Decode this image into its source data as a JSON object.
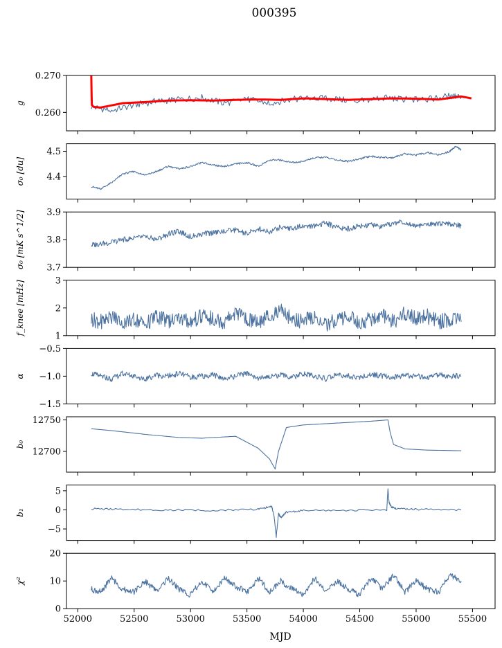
{
  "figure_title": "000395",
  "xlabel": "MJD",
  "colors": {
    "series": "#4c72a0",
    "fit": "#ff0000",
    "axes": "#000000"
  },
  "chart_data": [
    {
      "type": "line",
      "ylabel": "g",
      "ylim": [
        0.255,
        0.27
      ],
      "yticks": [
        "0.260",
        "0.270"
      ],
      "ytick_values": [
        0.26,
        0.27
      ],
      "series": [
        {
          "color": "#4c72a0",
          "x": [
            52120,
            52300,
            52500,
            52700,
            52900,
            53100,
            53300,
            53500,
            53700,
            53900,
            54100,
            54300,
            54500,
            54700,
            54900,
            55100,
            55300,
            55400
          ],
          "y": [
            0.2615,
            0.2605,
            0.262,
            0.263,
            0.2635,
            0.264,
            0.2625,
            0.2635,
            0.2625,
            0.2635,
            0.264,
            0.2635,
            0.263,
            0.264,
            0.2635,
            0.2635,
            0.2645,
            0.264
          ]
        },
        {
          "color": "#ff0000",
          "x": [
            52120,
            52125,
            52140,
            52200,
            52400,
            52600,
            52800,
            53000,
            53200,
            53400,
            53600,
            53800,
            54000,
            54200,
            54400,
            54600,
            54800,
            55000,
            55200,
            55400,
            55490
          ],
          "y": [
            0.27,
            0.262,
            0.2615,
            0.2613,
            0.2625,
            0.2628,
            0.2632,
            0.2633,
            0.2632,
            0.2634,
            0.2635,
            0.2634,
            0.2638,
            0.2636,
            0.2634,
            0.2636,
            0.2638,
            0.2637,
            0.2635,
            0.2643,
            0.2638
          ]
        }
      ]
    },
    {
      "type": "line",
      "ylabel": "σ₀ [du]",
      "ylim": [
        4.31,
        4.53
      ],
      "yticks": [
        "4.4",
        "4.5"
      ],
      "ytick_values": [
        4.4,
        4.5
      ],
      "series": [
        {
          "color": "#4c72a0",
          "x": [
            52120,
            52200,
            52300,
            52400,
            52500,
            52600,
            52700,
            52800,
            52900,
            53000,
            53100,
            53200,
            53300,
            53400,
            53500,
            53600,
            53700,
            53800,
            53900,
            54000,
            54100,
            54200,
            54300,
            54400,
            54500,
            54600,
            54700,
            54800,
            54900,
            55000,
            55100,
            55200,
            55300,
            55350,
            55400
          ],
          "y": [
            4.36,
            4.35,
            4.375,
            4.41,
            4.42,
            4.405,
            4.42,
            4.44,
            4.43,
            4.44,
            4.455,
            4.445,
            4.44,
            4.45,
            4.455,
            4.44,
            4.465,
            4.465,
            4.455,
            4.46,
            4.475,
            4.475,
            4.465,
            4.46,
            4.47,
            4.48,
            4.475,
            4.475,
            4.49,
            4.485,
            4.495,
            4.485,
            4.5,
            4.52,
            4.505
          ]
        }
      ]
    },
    {
      "type": "line",
      "ylabel": "σ₀ [mK s^1/2]",
      "ylim": [
        3.7,
        3.9
      ],
      "yticks": [
        "3.7",
        "3.8",
        "3.9"
      ],
      "ytick_values": [
        3.7,
        3.8,
        3.9
      ],
      "series": [
        {
          "color": "#4c72a0",
          "x": [
            52120,
            52200,
            52300,
            52400,
            52500,
            52600,
            52700,
            52800,
            52900,
            53000,
            53100,
            53200,
            53300,
            53400,
            53500,
            53600,
            53700,
            53800,
            53900,
            54000,
            54100,
            54200,
            54300,
            54400,
            54500,
            54600,
            54700,
            54800,
            54900,
            55000,
            55100,
            55200,
            55300,
            55400
          ],
          "y": [
            3.78,
            3.785,
            3.79,
            3.8,
            3.805,
            3.81,
            3.8,
            3.82,
            3.83,
            3.81,
            3.82,
            3.825,
            3.83,
            3.835,
            3.82,
            3.84,
            3.83,
            3.845,
            3.84,
            3.85,
            3.85,
            3.86,
            3.845,
            3.84,
            3.85,
            3.855,
            3.845,
            3.86,
            3.865,
            3.85,
            3.855,
            3.86,
            3.855,
            3.85
          ]
        }
      ]
    },
    {
      "type": "line",
      "ylabel": "f_knee [mHz]",
      "ylim": [
        1,
        3
      ],
      "yticks": [
        "1",
        "2",
        "3"
      ],
      "ytick_values": [
        1,
        2,
        3
      ],
      "series": [
        {
          "color": "#4c72a0",
          "x": [
            52120,
            52200,
            52300,
            52400,
            52500,
            52600,
            52700,
            52800,
            52900,
            53000,
            53100,
            53200,
            53300,
            53400,
            53500,
            53600,
            53700,
            53800,
            53900,
            54000,
            54100,
            54200,
            54300,
            54400,
            54500,
            54600,
            54700,
            54800,
            54900,
            55000,
            55100,
            55200,
            55300,
            55400
          ],
          "y": [
            1.6,
            1.5,
            1.7,
            1.5,
            1.6,
            1.4,
            1.7,
            1.5,
            1.6,
            1.5,
            1.7,
            1.6,
            1.5,
            1.8,
            1.6,
            1.5,
            1.7,
            1.9,
            1.6,
            1.5,
            1.7,
            1.4,
            1.6,
            1.7,
            1.5,
            1.6,
            1.7,
            1.5,
            1.8,
            1.6,
            1.7,
            1.5,
            1.6,
            1.5
          ]
        }
      ]
    },
    {
      "type": "line",
      "ylabel": "α",
      "ylim": [
        -1.5,
        -0.5
      ],
      "yticks": [
        "−1.5",
        "−1.0",
        "−0.5"
      ],
      "ytick_values": [
        -1.5,
        -1.0,
        -0.5
      ],
      "series": [
        {
          "color": "#4c72a0",
          "x": [
            52120,
            52200,
            52300,
            52400,
            52500,
            52600,
            52700,
            52800,
            52900,
            53000,
            53100,
            53200,
            53300,
            53400,
            53500,
            53600,
            53700,
            53800,
            53900,
            54000,
            54100,
            54200,
            54300,
            54400,
            54500,
            54600,
            54700,
            54800,
            54900,
            55000,
            55100,
            55200,
            55300,
            55400
          ],
          "y": [
            -0.95,
            -1.0,
            -1.05,
            -0.95,
            -1.0,
            -1.05,
            -0.98,
            -1.0,
            -0.95,
            -1.02,
            -1.0,
            -0.97,
            -1.05,
            -1.0,
            -0.95,
            -1.03,
            -1.0,
            -0.98,
            -1.02,
            -0.96,
            -1.0,
            -1.05,
            -0.97,
            -1.0,
            -1.03,
            -0.96,
            -1.0,
            -1.02,
            -0.98,
            -1.0,
            -1.03,
            -0.97,
            -1.0,
            -1.0
          ]
        }
      ]
    },
    {
      "type": "line",
      "ylabel": "b₀",
      "ylim": [
        12667,
        12755
      ],
      "yticks": [
        "12700",
        "12750"
      ],
      "ytick_values": [
        12700,
        12750
      ],
      "series": [
        {
          "color": "#4c72a0",
          "x": [
            52120,
            52300,
            52600,
            52900,
            53100,
            53400,
            53600,
            53700,
            53750,
            53780,
            53850,
            54000,
            54200,
            54400,
            54600,
            54750,
            54770,
            54800,
            54900,
            55100,
            55400
          ],
          "y": [
            12736,
            12733,
            12727,
            12722,
            12721,
            12724,
            12705,
            12688,
            12672,
            12700,
            12738,
            12742,
            12744,
            12746,
            12748,
            12750,
            12730,
            12711,
            12704,
            12702,
            12701
          ]
        }
      ]
    },
    {
      "type": "line",
      "ylabel": "b₁",
      "ylim": [
        -8,
        6.5
      ],
      "yticks": [
        "−5",
        "0",
        "5"
      ],
      "ytick_values": [
        -5,
        0,
        5
      ],
      "series": [
        {
          "color": "#4c72a0",
          "x": [
            52120,
            52400,
            52800,
            53200,
            53600,
            53720,
            53740,
            53760,
            53780,
            53800,
            53850,
            54000,
            54400,
            54740,
            54750,
            54760,
            54780,
            54820,
            55000,
            55400
          ],
          "y": [
            0.3,
            0.1,
            0.0,
            -0.1,
            0.2,
            0.9,
            -1.5,
            -7,
            -1.0,
            -2.0,
            -0.6,
            -0.2,
            -0.1,
            0.0,
            5.5,
            2.0,
            0.8,
            0.3,
            0.1,
            0.0
          ]
        }
      ]
    },
    {
      "type": "line",
      "ylabel": "χ²",
      "ylim": [
        0,
        20
      ],
      "yticks": [
        "0",
        "10",
        "20"
      ],
      "ytick_values": [
        0,
        10,
        20
      ],
      "series": [
        {
          "color": "#4c72a0",
          "x": [
            52120,
            52200,
            52300,
            52400,
            52500,
            52600,
            52700,
            52800,
            52900,
            53000,
            53100,
            53200,
            53300,
            53400,
            53500,
            53600,
            53700,
            53800,
            53900,
            54000,
            54100,
            54200,
            54300,
            54400,
            54500,
            54600,
            54700,
            54800,
            54900,
            55000,
            55100,
            55200,
            55300,
            55400
          ],
          "y": [
            7,
            6,
            11,
            7,
            6,
            10,
            6,
            11,
            7,
            5,
            10,
            6,
            11,
            8,
            6,
            11,
            6,
            10,
            7,
            5,
            11,
            6,
            10,
            7,
            5,
            11,
            7,
            12,
            6,
            10,
            7,
            6,
            12,
            10
          ]
        }
      ]
    }
  ],
  "x_axis": {
    "xlim": [
      51900,
      55700
    ],
    "ticks": [
      "52000",
      "52500",
      "53000",
      "53500",
      "54000",
      "54500",
      "55000",
      "55500"
    ],
    "tick_values": [
      52000,
      52500,
      53000,
      53500,
      54000,
      54500,
      55000,
      55500
    ]
  }
}
